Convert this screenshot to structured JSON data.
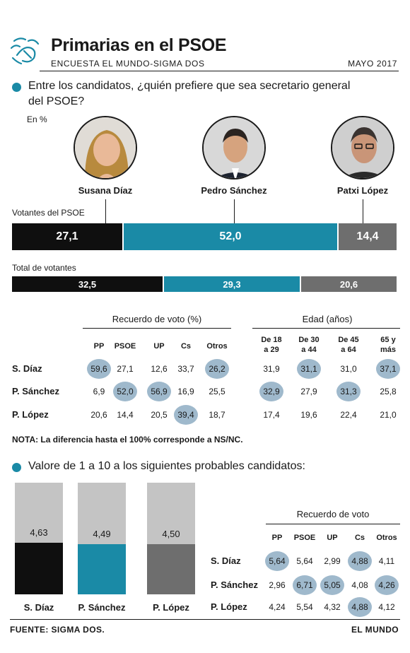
{
  "header": {
    "title": "Primarias en el PSOE",
    "subtitle": "ENCUESTA EL MUNDO-SIGMA DOS",
    "date": "MAYO 2017"
  },
  "q1": {
    "text_line1": "Entre los candidatos, ¿quién prefiere que sea secretario general",
    "text_line2": "del PSOE?",
    "unit": "En %"
  },
  "candidates": [
    {
      "name": "Susana Díaz"
    },
    {
      "name": "Pedro Sánchez"
    },
    {
      "name": "Patxi López"
    }
  ],
  "chart_data": [
    {
      "type": "bar",
      "title": "Votantes del PSOE",
      "categories": [
        "Susana Díaz",
        "Pedro Sánchez",
        "Patxi López"
      ],
      "values": [
        27.1,
        52.0,
        14.4
      ],
      "labels": [
        "27,1",
        "52,0",
        "14,4"
      ],
      "colors": [
        "#0f0f0f",
        "#1a8aa6",
        "#6e6e6e"
      ]
    },
    {
      "type": "bar",
      "title": "Total de votantes",
      "categories": [
        "Susana Díaz",
        "Pedro Sánchez",
        "Patxi López"
      ],
      "values": [
        32.5,
        29.3,
        20.6
      ],
      "labels": [
        "32,5",
        "29,3",
        "20,6"
      ],
      "colors": [
        "#0f0f0f",
        "#1a8aa6",
        "#6e6e6e"
      ]
    },
    {
      "type": "table",
      "groups": [
        {
          "title": "Recuerdo de voto (%)",
          "columns": [
            "PP",
            "PSOE",
            "UP",
            "Cs",
            "Otros"
          ]
        },
        {
          "title": "Edad (años)",
          "columns": [
            "De 18 a 29",
            "De 30 a 44",
            "De 45 a 64",
            "65 y más"
          ]
        }
      ],
      "rows": [
        {
          "label": "S. Díaz",
          "values": [
            "59,6",
            "27,1",
            "12,6",
            "33,7",
            "26,2",
            "31,9",
            "31,1",
            "31,0",
            "37,1"
          ],
          "highlight": [
            0,
            4,
            6,
            8
          ]
        },
        {
          "label": "P. Sánchez",
          "values": [
            "6,9",
            "52,0",
            "56,9",
            "16,9",
            "25,5",
            "32,9",
            "27,9",
            "31,3",
            "25,8"
          ],
          "highlight": [
            1,
            2,
            5,
            7
          ]
        },
        {
          "label": "P. López",
          "values": [
            "20,6",
            "14,4",
            "20,5",
            "39,4",
            "18,7",
            "17,4",
            "19,6",
            "22,4",
            "21,0"
          ],
          "highlight": [
            3
          ]
        }
      ]
    },
    {
      "type": "bar",
      "title": "Valore de 1 a 10 a los siguientes probables candidatos:",
      "categories": [
        "S. Díaz",
        "P. Sánchez",
        "P. López"
      ],
      "values": [
        4.63,
        4.49,
        4.5
      ],
      "labels": [
        "4,63",
        "4,49",
        "4,50"
      ],
      "ylim": [
        0,
        10
      ],
      "colors": [
        "#0f0f0f",
        "#1a8aa6",
        "#6e6e6e"
      ],
      "background_color": "#c4c4c4"
    },
    {
      "type": "table",
      "title": "Recuerdo de voto",
      "columns": [
        "PP",
        "PSOE",
        "UP",
        "Cs",
        "Otros"
      ],
      "rows": [
        {
          "label": "S. Díaz",
          "values": [
            "5,64",
            "5,64",
            "2,99",
            "4,88",
            "4,11"
          ],
          "highlight": [
            0,
            3
          ]
        },
        {
          "label": "P. Sánchez",
          "values": [
            "2,96",
            "6,71",
            "5,05",
            "4,08",
            "4,26"
          ],
          "highlight": [
            1,
            2,
            4
          ]
        },
        {
          "label": "P. López",
          "values": [
            "4,24",
            "5,54",
            "4,32",
            "4,88",
            "4,12"
          ],
          "highlight": [
            3
          ]
        }
      ]
    }
  ],
  "labels": {
    "votantes_psoe": "Votantes del PSOE",
    "total_votantes": "Total de votantes",
    "recuerdo_pct": "Recuerdo de voto (%)",
    "edad": "Edad (años)",
    "recuerdo": "Recuerdo de voto"
  },
  "cols1": [
    "PP",
    "PSOE",
    "UP",
    "Cs",
    "Otros"
  ],
  "cols_age": [
    [
      "De 18",
      "a 29"
    ],
    [
      "De 30",
      "a 44"
    ],
    [
      "De 45",
      "a 64"
    ],
    [
      "65 y",
      "más"
    ]
  ],
  "note": "NOTA: La diferencia hasta el 100% corresponde a NS/NC.",
  "q2": {
    "text": "Valore de 1 a 10 a los siguientes probables candidatos:"
  },
  "footer": {
    "source": "FUENTE: SIGMA DOS.",
    "brand": "EL MUNDO"
  },
  "colors": {
    "accent": "#1a8aa6",
    "dark": "#0f0f0f",
    "grey": "#6e6e6e",
    "light_grey": "#c4c4c4",
    "highlight": "#9fb9cc"
  },
  "icons": {
    "logo": "fist-rose-logo-icon"
  }
}
